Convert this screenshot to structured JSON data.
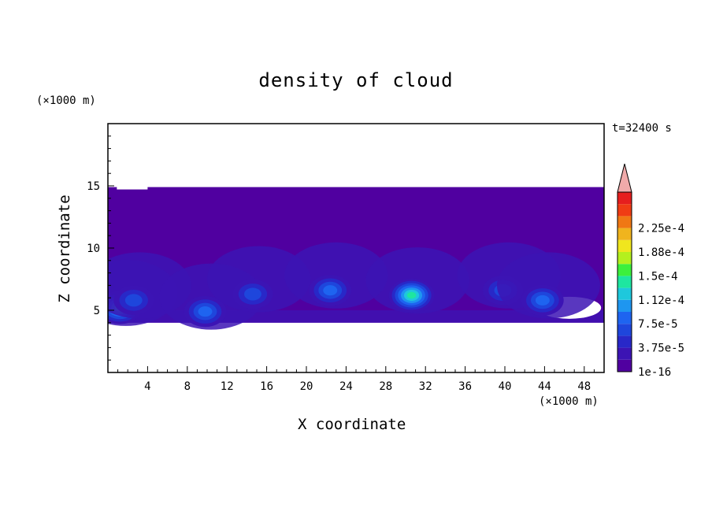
{
  "chart_data": {
    "type": "heatmap",
    "title": "density of cloud",
    "xlabel": "X coordinate",
    "ylabel": "Z coordinate",
    "x_unit_label": "(×1000 m)",
    "y_unit_label": "(×1000 m)",
    "time_label": "t=32400 s",
    "xlim": [
      0,
      50
    ],
    "ylim": [
      0,
      20
    ],
    "x_ticks": [
      4,
      8,
      12,
      16,
      20,
      24,
      28,
      32,
      36,
      40,
      44,
      48
    ],
    "y_ticks": [
      5,
      10,
      15
    ],
    "colorbar": {
      "levels": [
        "1e-16",
        "1.875e-5",
        "3.75e-5",
        "5.625e-5",
        "7.5e-5",
        "9.375e-5",
        "1.12e-4",
        "1.31e-4",
        "1.5e-4",
        "1.69e-4",
        "1.88e-4",
        "2.06e-4",
        "2.25e-4",
        "2.44e-4"
      ],
      "tick_labels": [
        "1e-16",
        "3.75e-5",
        "7.5e-5",
        "1.12e-4",
        "1.5e-4",
        "1.88e-4",
        "2.25e-4"
      ],
      "colors": [
        "#5000a0",
        "#3c14b4",
        "#2828c8",
        "#1e46dc",
        "#1e64f0",
        "#1e96f0",
        "#1ec8dc",
        "#1ee6a0",
        "#3cf03c",
        "#b4f01e",
        "#f0e61e",
        "#f0b41e",
        "#f07814",
        "#f03c14",
        "#e61e1e"
      ],
      "overflow_color": "#f0aaaa"
    },
    "cloud_layer": {
      "z_bottom": 4,
      "z_top": 14.9
    },
    "cells": [
      {
        "x": 1.2,
        "z": 5.2,
        "level": 7
      },
      {
        "x": 2.6,
        "z": 5.8,
        "level": 4
      },
      {
        "x": 9.8,
        "z": 4.9,
        "level": 5
      },
      {
        "x": 14.6,
        "z": 6.3,
        "level": 4
      },
      {
        "x": 22.4,
        "z": 6.6,
        "level": 5
      },
      {
        "x": 30.6,
        "z": 6.2,
        "level": 8
      },
      {
        "x": 39.8,
        "z": 6.6,
        "level": 4
      },
      {
        "x": 43.8,
        "z": 5.8,
        "level": 5
      }
    ]
  }
}
